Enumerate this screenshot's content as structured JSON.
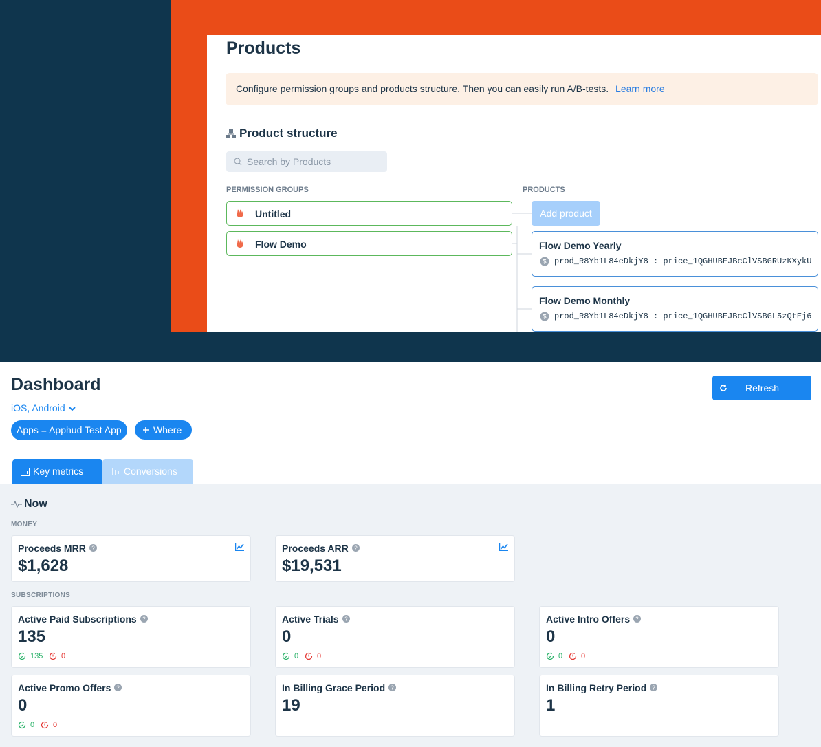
{
  "products": {
    "title": "Products",
    "notice": {
      "text": "Configure permission groups and products structure. Then you can easily run A/B-tests.",
      "link": "Learn more"
    },
    "section_title": "Product structure",
    "search_placeholder": "Search by Products",
    "groups_header": "PERMISSION GROUPS",
    "products_header": "PRODUCTS",
    "groups": [
      "Untitled",
      "Flow Demo"
    ],
    "add_product": "Add product",
    "items": [
      {
        "name": "Flow Demo Yearly",
        "ids": "prod_R8Yb1L84eDkjY8 : price_1QGHUBEJBcClVSBGRUzKXykU"
      },
      {
        "name": "Flow Demo Monthly",
        "ids": "prod_R8Yb1L84eDkjY8 : price_1QGHUBEJBcClVSBGL5zQtEj6"
      }
    ]
  },
  "dashboard": {
    "title": "Dashboard",
    "platforms": "iOS, Android",
    "filter": "Apps = Apphud Test App",
    "add_filter": "Where",
    "refresh": "Refresh",
    "tabs": [
      "Key metrics",
      "Conversions"
    ],
    "section": "Now",
    "groups": [
      {
        "label": "MONEY",
        "cards": [
          {
            "title": "Proceeds MRR",
            "value": "$1,628"
          },
          {
            "title": "Proceeds ARR",
            "value": "$19,531"
          }
        ]
      },
      {
        "label": "SUBSCRIPTIONS",
        "cards": [
          {
            "title": "Active Paid Subscriptions",
            "value": "135",
            "renewing": "135",
            "cancelled": "0"
          },
          {
            "title": "Active Trials",
            "value": "0",
            "renewing": "0",
            "cancelled": "0"
          },
          {
            "title": "Active Intro Offers",
            "value": "0",
            "renewing": "0",
            "cancelled": "0"
          },
          {
            "title": "Active Promo Offers",
            "value": "0",
            "renewing": "0",
            "cancelled": "0"
          },
          {
            "title": "In Billing Grace Period",
            "value": "19"
          },
          {
            "title": "In Billing Retry Period",
            "value": "1"
          }
        ]
      }
    ]
  }
}
